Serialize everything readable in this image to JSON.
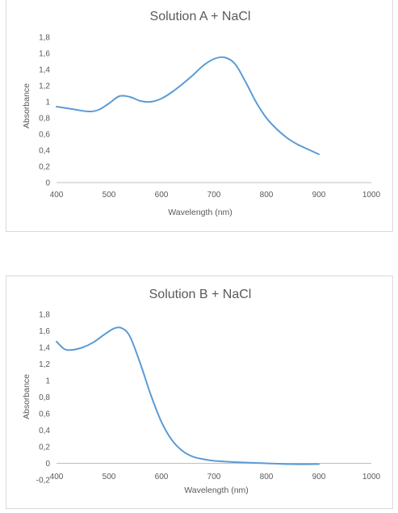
{
  "chart_data": [
    {
      "type": "line",
      "title": "Solution A + NaCl",
      "xlabel": "Wavelength (nm)",
      "ylabel": "Absorbance",
      "xlim": [
        400,
        1000
      ],
      "ylim": [
        0,
        1.8
      ],
      "x_ticks": [
        "400",
        "500",
        "600",
        "700",
        "800",
        "900",
        "1000"
      ],
      "y_ticks": [
        "0",
        "0,2",
        "0,4",
        "0,6",
        "0,8",
        "1",
        "1,2",
        "1,4",
        "1,6",
        "1,8"
      ],
      "grid": false,
      "legend": "none",
      "color": "#5b9bd5",
      "series": [
        {
          "x": [
            400,
            430,
            460,
            480,
            500,
            520,
            540,
            560,
            580,
            600,
            620,
            640,
            660,
            680,
            700,
            720,
            740,
            760,
            780,
            800,
            820,
            840,
            860,
            880,
            900
          ],
          "y": [
            0.94,
            0.91,
            0.88,
            0.9,
            0.98,
            1.07,
            1.06,
            1.01,
            1.0,
            1.04,
            1.12,
            1.22,
            1.33,
            1.45,
            1.53,
            1.55,
            1.47,
            1.25,
            1.0,
            0.8,
            0.66,
            0.55,
            0.47,
            0.41,
            0.35
          ]
        }
      ]
    },
    {
      "type": "line",
      "title": "Solution B + NaCl",
      "xlabel": "Wavelength (nm)",
      "ylabel": "Absorbance",
      "xlim": [
        400,
        1000
      ],
      "ylim": [
        -0.2,
        1.8
      ],
      "x_ticks": [
        "400",
        "500",
        "600",
        "700",
        "800",
        "900",
        "1000"
      ],
      "y_ticks": [
        "-0,2",
        "0",
        "0,2",
        "0,4",
        "0,6",
        "0,8",
        "1",
        "1,2",
        "1,4",
        "1,6",
        "1,8"
      ],
      "grid": false,
      "legend": "none",
      "color": "#5b9bd5",
      "series": [
        {
          "x": [
            400,
            415,
            430,
            450,
            470,
            490,
            510,
            525,
            540,
            560,
            580,
            600,
            620,
            640,
            660,
            680,
            700,
            740,
            800,
            850,
            900
          ],
          "y": [
            1.47,
            1.38,
            1.37,
            1.4,
            1.46,
            1.55,
            1.63,
            1.63,
            1.53,
            1.2,
            0.82,
            0.5,
            0.28,
            0.15,
            0.08,
            0.05,
            0.03,
            0.015,
            0.0,
            -0.01,
            -0.01
          ]
        }
      ]
    }
  ]
}
